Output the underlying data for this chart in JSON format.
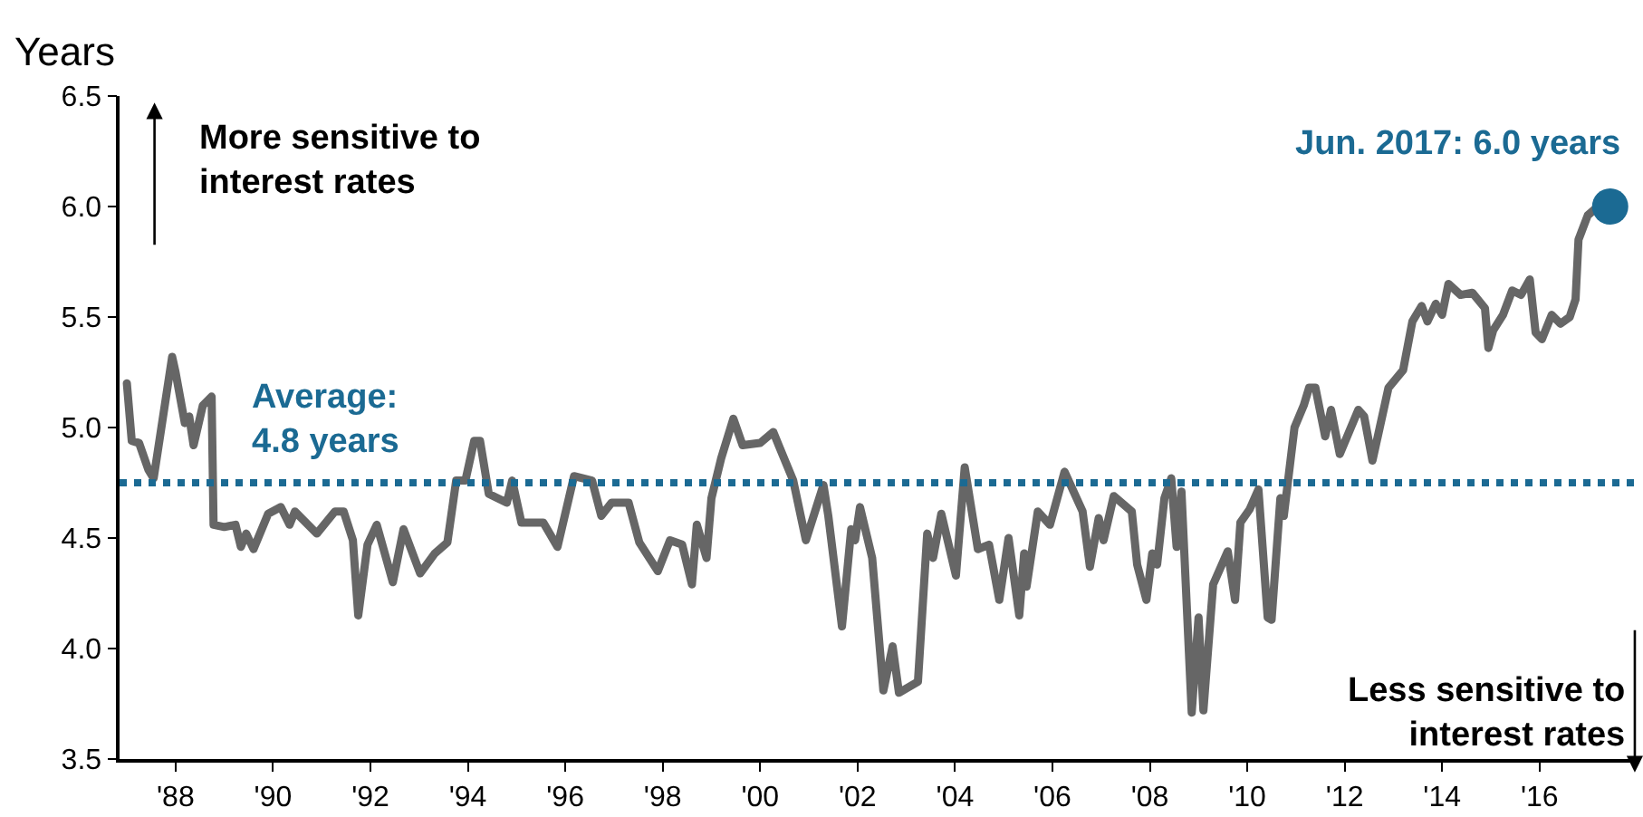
{
  "chart_data": {
    "type": "line",
    "ylabel": "Years",
    "x": [
      1987.0,
      1987.1,
      1987.25,
      1987.44,
      1987.55,
      1987.93,
      1988.0,
      1988.19,
      1988.28,
      1988.37,
      1988.56,
      1988.74,
      1988.78,
      1989.0,
      1989.23,
      1989.34,
      1989.45,
      1989.6,
      1989.9,
      1990.16,
      1990.34,
      1990.45,
      1990.9,
      1991.27,
      1991.45,
      1991.64,
      1991.75,
      1991.94,
      1992.13,
      1992.46,
      1992.68,
      1993.02,
      1993.32,
      1993.58,
      1993.76,
      1993.95,
      1994.13,
      1994.25,
      1994.43,
      1994.8,
      1994.91,
      1995.1,
      1995.55,
      1995.84,
      1996.18,
      1996.55,
      1996.74,
      1996.95,
      1997.3,
      1997.52,
      1997.9,
      1998.15,
      1998.4,
      1998.6,
      1998.7,
      1998.9,
      1999.0,
      1999.2,
      1999.45,
      1999.64,
      2000.0,
      2000.27,
      2000.38,
      2000.68,
      2000.94,
      2001.3,
      2001.4,
      2001.68,
      2001.87,
      2001.95,
      2002.05,
      2002.3,
      2002.53,
      2002.72,
      2002.85,
      2003.24,
      2003.43,
      2003.55,
      2003.72,
      2004.02,
      2004.2,
      2004.47,
      2004.7,
      2004.91,
      2005.1,
      2005.32,
      2005.42,
      2005.47,
      2005.7,
      2005.95,
      2006.25,
      2006.62,
      2006.77,
      2006.95,
      2007.05,
      2007.26,
      2007.63,
      2007.74,
      2007.93,
      2008.05,
      2008.15,
      2008.3,
      2008.44,
      2008.55,
      2008.65,
      2008.86,
      2009.0,
      2009.1,
      2009.3,
      2009.6,
      2009.75,
      2009.86,
      2010.05,
      2010.23,
      2010.42,
      2010.5,
      2010.68,
      2010.75,
      2010.97,
      2011.16,
      2011.27,
      2011.4,
      2011.6,
      2011.72,
      2011.9,
      2012.28,
      2012.4,
      2012.57,
      2012.72,
      2012.9,
      2013.2,
      2013.39,
      2013.58,
      2013.7,
      2013.87,
      2014.0,
      2014.13,
      2014.38,
      2014.62,
      2014.88,
      2014.95,
      2015.05,
      2015.25,
      2015.44,
      2015.62,
      2015.8,
      2015.92,
      2016.05,
      2016.25,
      2016.43,
      2016.62,
      2016.74,
      2016.8,
      2016.99,
      2017.2,
      2017.45
    ],
    "series": [
      {
        "color": "#666666",
        "values": [
          5.2,
          4.94,
          4.93,
          4.81,
          4.77,
          5.32,
          5.25,
          5.02,
          5.05,
          4.92,
          5.1,
          5.14,
          4.56,
          4.55,
          4.56,
          4.46,
          4.52,
          4.45,
          4.61,
          4.64,
          4.56,
          4.62,
          4.52,
          4.62,
          4.62,
          4.49,
          4.15,
          4.47,
          4.56,
          4.3,
          4.54,
          4.34,
          4.43,
          4.48,
          4.76,
          4.76,
          4.94,
          4.94,
          4.7,
          4.66,
          4.76,
          4.57,
          4.57,
          4.46,
          4.78,
          4.76,
          4.6,
          4.66,
          4.66,
          4.48,
          4.35,
          4.49,
          4.47,
          4.29,
          4.56,
          4.41,
          4.68,
          4.86,
          5.04,
          4.92,
          4.93,
          4.98,
          4.92,
          4.76,
          4.49,
          4.74,
          4.6,
          4.1,
          4.54,
          4.49,
          4.64,
          4.41,
          3.81,
          4.01,
          3.8,
          3.85,
          4.52,
          4.41,
          4.61,
          4.33,
          4.82,
          4.45,
          4.47,
          4.22,
          4.5,
          4.15,
          4.43,
          4.28,
          4.62,
          4.56,
          4.8,
          4.62,
          4.37,
          4.59,
          4.49,
          4.69,
          4.62,
          4.38,
          4.22,
          4.43,
          4.38,
          4.68,
          4.77,
          4.46,
          4.71,
          3.71,
          4.14,
          3.72,
          4.29,
          4.44,
          4.22,
          4.57,
          4.63,
          4.72,
          4.14,
          4.13,
          4.68,
          4.6,
          5.0,
          5.1,
          5.18,
          5.18,
          4.96,
          5.08,
          4.88,
          5.08,
          5.05,
          4.85,
          5.0,
          5.18,
          5.26,
          5.48,
          5.55,
          5.48,
          5.56,
          5.51,
          5.65,
          5.6,
          5.61,
          5.54,
          5.36,
          5.44,
          5.51,
          5.62,
          5.6,
          5.67,
          5.43,
          5.4,
          5.51,
          5.47,
          5.5,
          5.58,
          5.85,
          5.96,
          6.0,
          6.0
        ]
      },
      {
        "type": "scatter",
        "color": "#1b6a93",
        "marker": "circle",
        "x": [
          2017.45
        ],
        "values": [
          6.0
        ]
      }
    ],
    "xlim": [
      1986.85,
      2018.05
    ],
    "xticks": [
      {
        "value": 1988,
        "label": "'88"
      },
      {
        "value": 1990,
        "label": "'90"
      },
      {
        "value": 1992,
        "label": "'92"
      },
      {
        "value": 1994,
        "label": "'94"
      },
      {
        "value": 1996,
        "label": "'96"
      },
      {
        "value": 1998,
        "label": "'98"
      },
      {
        "value": 2000,
        "label": "'00"
      },
      {
        "value": 2002,
        "label": "'02"
      },
      {
        "value": 2004,
        "label": "'04"
      },
      {
        "value": 2006,
        "label": "'06"
      },
      {
        "value": 2008,
        "label": "'08"
      },
      {
        "value": 2010,
        "label": "'10"
      },
      {
        "value": 2012,
        "label": "'12"
      },
      {
        "value": 2014,
        "label": "'14"
      },
      {
        "value": 2016,
        "label": "'16"
      }
    ],
    "ylim": [
      3.5,
      6.5
    ],
    "yticks": [
      3.5,
      {
        "value": 4,
        "label": "4.0"
      },
      4.5,
      {
        "value": 5,
        "label": "5.0"
      },
      5.5,
      {
        "value": 6,
        "label": "6.0"
      },
      6.5
    ],
    "ref_lines": [
      {
        "axis": "y",
        "value": 4.75,
        "label": "Average:\n4.8 years",
        "color": "#1b6a93",
        "line_style": "dotted"
      }
    ],
    "annotations": [
      {
        "text": "Jun. 2017: 6.0 years",
        "x": 2017.45,
        "y": 6.0
      },
      "More sensitive to\ninterest rates",
      "Less sensitive to\ninterest rates"
    ],
    "marker": "none",
    "line_style": "solid"
  }
}
